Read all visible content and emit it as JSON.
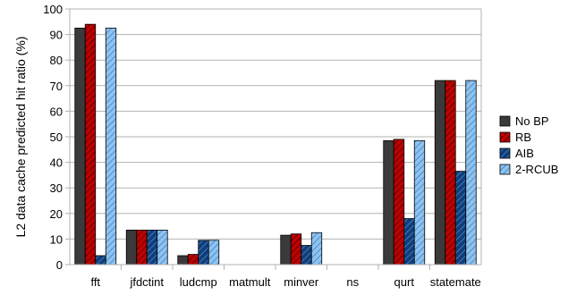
{
  "chart_data": {
    "type": "bar",
    "title": "",
    "xlabel": "",
    "ylabel": "L2 data cache predicted hit ratio (%)",
    "ylim": [
      0,
      100
    ],
    "yticks": [
      0,
      10,
      20,
      30,
      40,
      50,
      60,
      70,
      80,
      90,
      100
    ],
    "grid": "horizontal",
    "legend_position": "right",
    "categories": [
      "fft",
      "jfdctint",
      "ludcmp",
      "matmult",
      "minver",
      "ns",
      "qurt",
      "statemate"
    ],
    "series": [
      {
        "name": "No BP",
        "color": "#3a3a3a",
        "pattern": "solid",
        "values": [
          92.5,
          13.5,
          3.5,
          0,
          11.5,
          0,
          48.5,
          72
        ]
      },
      {
        "name": "RB",
        "color": "#c00000",
        "pattern": "diagonal-dark",
        "values": [
          94,
          13.5,
          4,
          0,
          12,
          0,
          49,
          72
        ]
      },
      {
        "name": "AIB",
        "color": "#0f3f7a",
        "pattern": "diagonal-light",
        "values": [
          3.5,
          13.5,
          9.5,
          0,
          7.5,
          0,
          18,
          36.5
        ]
      },
      {
        "name": "2-RCUB",
        "color": "#8ec3ef",
        "pattern": "diagonal-blue",
        "values": [
          92.5,
          13.5,
          9.5,
          0,
          12.5,
          0,
          48.5,
          72
        ]
      }
    ]
  }
}
